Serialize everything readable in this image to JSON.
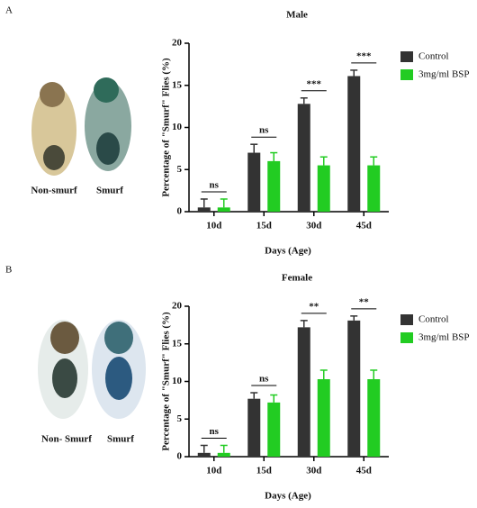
{
  "panels": [
    {
      "label": "A",
      "image_captions": [
        "Non-smurf",
        "Smurf"
      ]
    },
    {
      "label": "B",
      "image_captions": [
        "Non- Smurf",
        "Smurf"
      ]
    }
  ],
  "chart_data": [
    {
      "type": "bar",
      "title": "Male",
      "x_label": "Days (Age)",
      "y_label": "Percentage of \"Smurf\" Flies (%)",
      "categories": [
        "10d",
        "15d",
        "30d",
        "45d"
      ],
      "series": [
        {
          "name": "Control",
          "color": "#333333",
          "values": [
            0.5,
            7,
            12.8,
            16.1
          ],
          "errors": [
            1,
            1,
            0.7,
            0.7
          ]
        },
        {
          "name": "3mg/ml BSP",
          "color": "#22cc22",
          "values": [
            0.5,
            6,
            5.5,
            5.5
          ],
          "errors": [
            1,
            1,
            1,
            1
          ]
        }
      ],
      "significance": [
        "ns",
        "ns",
        "***",
        "***"
      ],
      "ylim": [
        0,
        20
      ],
      "yticks": [
        0,
        5,
        10,
        15,
        20
      ],
      "grid": false,
      "legend": "upper right"
    },
    {
      "type": "bar",
      "title": "Female",
      "x_label": "Days (Age)",
      "y_label": "Percentage of \"Smurf\" Flies (%)",
      "categories": [
        "10d",
        "15d",
        "30d",
        "45d"
      ],
      "series": [
        {
          "name": "Control",
          "color": "#333333",
          "values": [
            0.5,
            7.7,
            17.2,
            18.1
          ],
          "errors": [
            1,
            0.8,
            0.9,
            0.6
          ]
        },
        {
          "name": "3mg/ml BSP",
          "color": "#22cc22",
          "values": [
            0.5,
            7.2,
            10.3,
            10.3
          ],
          "errors": [
            1,
            1,
            1.2,
            1.2
          ]
        }
      ],
      "significance": [
        "ns",
        "ns",
        "**",
        "**"
      ],
      "ylim": [
        0,
        20
      ],
      "yticks": [
        0,
        5,
        10,
        15,
        20
      ],
      "grid": false,
      "legend": "upper right"
    }
  ]
}
